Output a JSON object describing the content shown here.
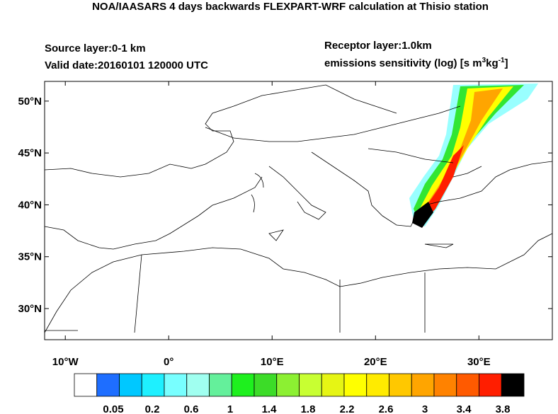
{
  "title": "NOA/IAASARS 4 days backwards FLEXPART-WRF calculation at Thisio station",
  "source_layer": "Source layer:0-1 km",
  "valid_date": "Valid date:20160101 120000 UTC",
  "receptor_layer": "Receptor layer:1.0km",
  "units_label": {
    "text": "emissions sensitivity (log) [s m",
    "sup1": "3",
    "mid": "kg",
    "sup2": "-1",
    "end": "]"
  },
  "map": {
    "xlim": [
      -12,
      37.1
    ],
    "ylim": [
      27,
      51.9
    ],
    "xticks": [
      {
        "value": -10,
        "label": "10°W"
      },
      {
        "value": 0,
        "label": "0°"
      },
      {
        "value": 10,
        "label": "10°E"
      },
      {
        "value": 20,
        "label": "20°E"
      },
      {
        "value": 30,
        "label": "30°E"
      }
    ],
    "yticks": [
      {
        "value": 30,
        "label": "30°N"
      },
      {
        "value": 35,
        "label": "35°N"
      },
      {
        "value": 40,
        "label": "40°N"
      },
      {
        "value": 45,
        "label": "45°N"
      },
      {
        "value": 50,
        "label": "50°N"
      }
    ]
  },
  "colorbar": {
    "colors": [
      "#ffffff",
      "#1e6eff",
      "#00c8ff",
      "#1ef0ff",
      "#78ffff",
      "#a0fff0",
      "#64f09b",
      "#1ef01e",
      "#3cdc28",
      "#8cf032",
      "#c8ff32",
      "#e6f514",
      "#ffff00",
      "#ffeb00",
      "#ffc800",
      "#ffa500",
      "#ff8200",
      "#ff5a00",
      "#ff1e00",
      "#000000"
    ],
    "labels": [
      "0.05",
      "0.2",
      "0.6",
      "1",
      "1.4",
      "1.8",
      "2.2",
      "2.6",
      "3",
      "3.4",
      "3.8"
    ]
  }
}
